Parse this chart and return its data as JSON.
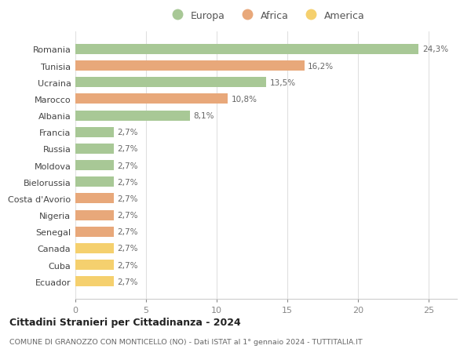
{
  "countries": [
    "Romania",
    "Tunisia",
    "Ucraina",
    "Marocco",
    "Albania",
    "Francia",
    "Russia",
    "Moldova",
    "Bielorussia",
    "Costa d'Avorio",
    "Nigeria",
    "Senegal",
    "Canada",
    "Cuba",
    "Ecuador"
  ],
  "values": [
    24.3,
    16.2,
    13.5,
    10.8,
    8.1,
    2.7,
    2.7,
    2.7,
    2.7,
    2.7,
    2.7,
    2.7,
    2.7,
    2.7,
    2.7
  ],
  "labels": [
    "24,3%",
    "16,2%",
    "13,5%",
    "10,8%",
    "8,1%",
    "2,7%",
    "2,7%",
    "2,7%",
    "2,7%",
    "2,7%",
    "2,7%",
    "2,7%",
    "2,7%",
    "2,7%",
    "2,7%"
  ],
  "continents": [
    "Europa",
    "Africa",
    "Europa",
    "Africa",
    "Europa",
    "Europa",
    "Europa",
    "Europa",
    "Europa",
    "Africa",
    "Africa",
    "Africa",
    "America",
    "America",
    "America"
  ],
  "colors": {
    "Europa": "#a8c896",
    "Africa": "#e8a87a",
    "America": "#f5d06e"
  },
  "legend": [
    "Europa",
    "Africa",
    "America"
  ],
  "legend_colors": [
    "#a8c896",
    "#e8a87a",
    "#f5d06e"
  ],
  "title": "Cittadini Stranieri per Cittadinanza - 2024",
  "subtitle": "COMUNE DI GRANOZZO CON MONTICELLO (NO) - Dati ISTAT al 1° gennaio 2024 - TUTTITALIA.IT",
  "xlim": [
    0,
    27
  ],
  "xticks": [
    0,
    5,
    10,
    15,
    20,
    25
  ],
  "background_color": "#ffffff",
  "grid_color": "#e0e0e0",
  "label_color": "#666666",
  "tick_color": "#888888",
  "bar_height": 0.62
}
